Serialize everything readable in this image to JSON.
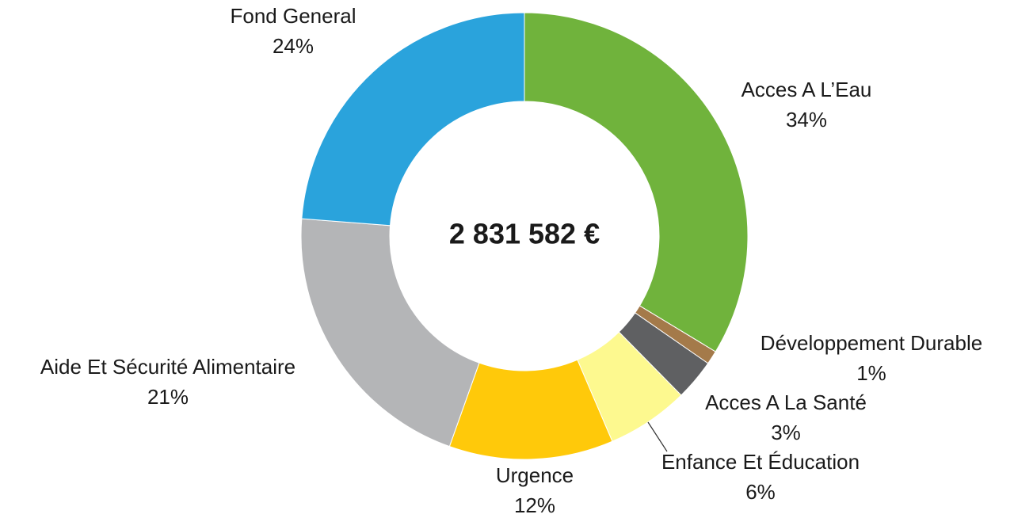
{
  "chart_data": {
    "type": "donut",
    "center_label": "2 831 582 €",
    "categories": [
      "Acces A L’Eau",
      "Développement Durable",
      "Acces A La Santé",
      "Enfance Et Éducation",
      "Urgence",
      "Aide Et Sécurité Alimentaire",
      "Fond General"
    ],
    "values": [
      34,
      1,
      3,
      6,
      12,
      21,
      24
    ],
    "value_labels": [
      "34%",
      "1%",
      "3%",
      "6%",
      "12%",
      "21%",
      "24%"
    ],
    "colors": [
      "#70b33c",
      "#a47a4a",
      "#5f6062",
      "#fdf98f",
      "#ffc90a",
      "#b4b5b7",
      "#2aa3dc"
    ]
  }
}
